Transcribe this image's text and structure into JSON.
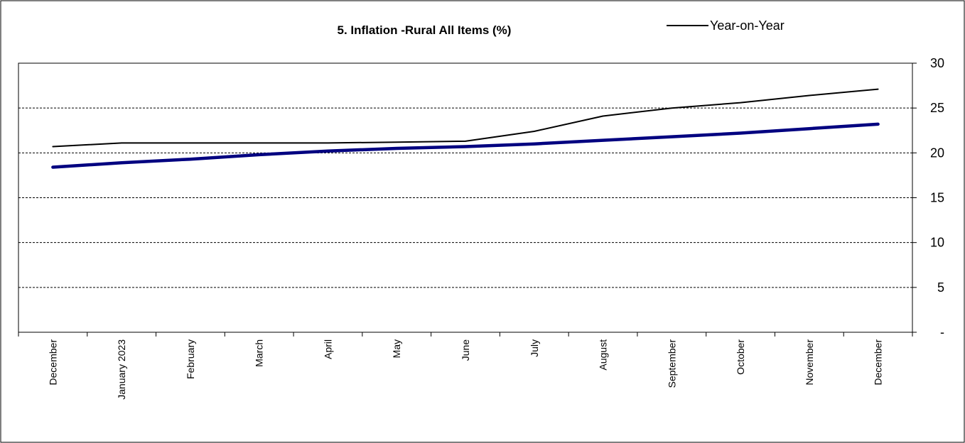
{
  "chart_data": {
    "type": "line",
    "title": "5. Inflation -Rural All Items (%)",
    "xlabel": "",
    "ylabel": "",
    "categories": [
      "December",
      "January 2023",
      "February",
      "March",
      "April",
      "May",
      "June",
      "July",
      "August",
      "September",
      "October",
      "November",
      "December"
    ],
    "yticks": [
      {
        "value": 30,
        "label": "30"
      },
      {
        "value": 25,
        "label": "25"
      },
      {
        "value": 20,
        "label": "20"
      },
      {
        "value": 15,
        "label": "15"
      },
      {
        "value": 10,
        "label": "10"
      },
      {
        "value": 5,
        "label": "5"
      },
      {
        "value": 0,
        "label": "-"
      }
    ],
    "ylim": [
      0,
      30
    ],
    "y_axis_side": "right",
    "grid": "horizontal-dashed",
    "legend_position": "top-right",
    "series": [
      {
        "name": "Year-on-Year",
        "color": "#000000",
        "values": [
          20.7,
          21.1,
          21.1,
          21.1,
          21.1,
          21.2,
          21.3,
          22.4,
          24.1,
          25.0,
          25.6,
          26.4,
          27.1
        ],
        "in_legend": true
      },
      {
        "name": "",
        "color": "#000080",
        "values": [
          18.4,
          18.9,
          19.3,
          19.8,
          20.2,
          20.5,
          20.7,
          21.0,
          21.4,
          21.8,
          22.2,
          22.7,
          23.2
        ],
        "in_legend": false
      }
    ]
  }
}
